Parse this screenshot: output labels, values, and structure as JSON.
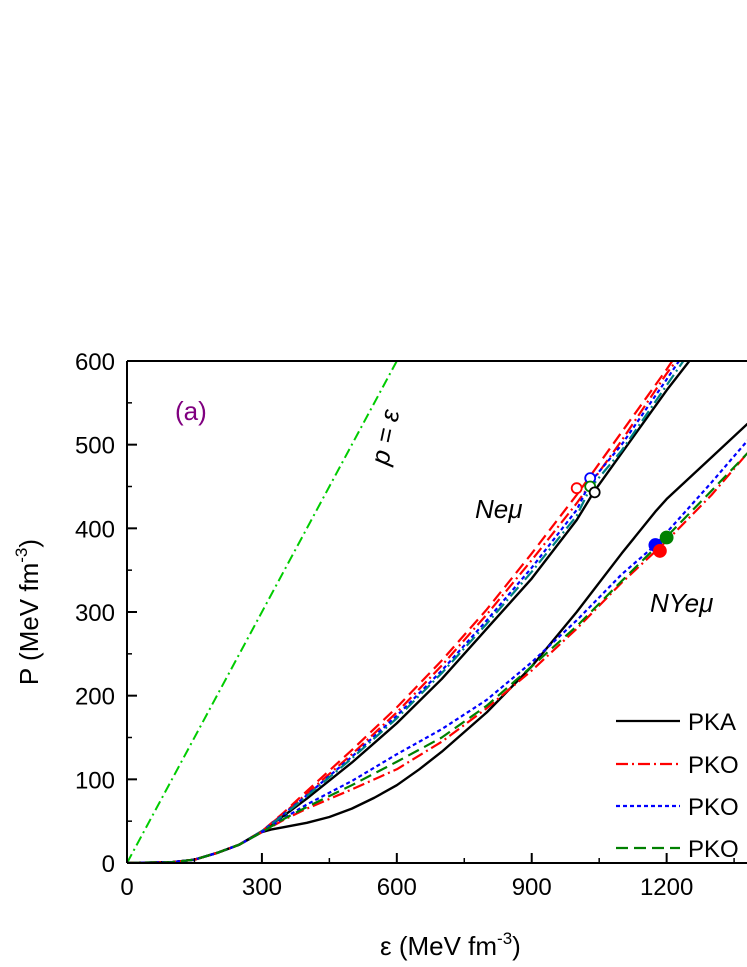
{
  "chart_data": {
    "type": "line",
    "panel_label": "(a)",
    "xlabel_main": "ε (MeV fm",
    "xlabel_sup": "-3",
    "xlabel_end": ")",
    "ylabel_main": "P (MeV fm",
    "ylabel_sup": "-3",
    "ylabel_end": ")",
    "xlim": [
      0,
      1380
    ],
    "ylim": [
      0,
      600
    ],
    "xticks": [
      0,
      300,
      600,
      900,
      1200
    ],
    "yticks": [
      0,
      100,
      200,
      300,
      400,
      500,
      600
    ],
    "xtick_labels": [
      "0",
      "300",
      "600",
      "900",
      "1200"
    ],
    "ytick_labels": [
      "0",
      "100",
      "200",
      "300",
      "400",
      "500",
      "600"
    ],
    "grid": false,
    "legend": [
      "PKA",
      "PKO",
      "PKO",
      "PKO"
    ],
    "annotations": {
      "causality": "p = ε",
      "nucleonic": "Neμ",
      "hyperonic": "NYeμ"
    },
    "colors": {
      "pka": "#000000",
      "pko_red": "#ff0000",
      "pko_blue": "#0000ff",
      "pko_green": "#008000",
      "causal": "#00cc00",
      "teal": "#008080"
    },
    "causality_line": {
      "x": [
        0,
        600
      ],
      "y": [
        0,
        600
      ]
    },
    "series": [
      {
        "group": "Neμ",
        "style": "solid",
        "color": "#000000",
        "x": [
          0,
          100,
          150,
          200,
          250,
          300,
          350,
          400,
          500,
          600,
          700,
          800,
          900,
          1000,
          1040,
          1100,
          1200,
          1265
        ],
        "y": [
          0,
          1,
          4,
          12,
          22,
          38,
          57,
          77,
          120,
          167,
          220,
          280,
          340,
          410,
          445,
          490,
          565,
          610
        ]
      },
      {
        "group": "Neμ",
        "style": "dashdot",
        "color": "#ff0000",
        "x": [
          0,
          100,
          150,
          200,
          250,
          300,
          350,
          400,
          500,
          600,
          700,
          800,
          900,
          1000,
          1100,
          1200,
          1235
        ],
        "y": [
          0,
          1,
          4,
          12,
          22,
          38,
          60,
          83,
          130,
          180,
          236,
          297,
          362,
          430,
          505,
          585,
          610
        ]
      },
      {
        "group": "Neμ",
        "style": "dashed",
        "color": "#ff0000",
        "x": [
          0,
          100,
          150,
          200,
          250,
          300,
          350,
          400,
          500,
          600,
          700,
          800,
          900,
          1000,
          1100,
          1200,
          1225
        ],
        "y": [
          0,
          1,
          4,
          12,
          22,
          38,
          61,
          86,
          135,
          186,
          242,
          303,
          370,
          440,
          515,
          590,
          610
        ]
      },
      {
        "group": "Neμ",
        "style": "dotted",
        "color": "#0000ff",
        "x": [
          0,
          100,
          150,
          200,
          250,
          300,
          350,
          400,
          500,
          600,
          700,
          800,
          900,
          1000,
          1030,
          1100,
          1200,
          1240
        ],
        "y": [
          0,
          1,
          4,
          12,
          22,
          38,
          59,
          81,
          127,
          176,
          230,
          290,
          353,
          422,
          455,
          500,
          578,
          610
        ]
      },
      {
        "group": "Neμ",
        "style": "dashdot",
        "color": "#008080",
        "x": [
          0,
          100,
          150,
          200,
          250,
          300,
          350,
          400,
          500,
          600,
          700,
          800,
          900,
          1000,
          1030,
          1100,
          1200,
          1250
        ],
        "y": [
          0,
          1,
          4,
          12,
          22,
          38,
          58,
          80,
          125,
          173,
          227,
          286,
          348,
          415,
          448,
          493,
          571,
          610
        ]
      },
      {
        "group": "NYeμ",
        "style": "solid",
        "color": "#000000",
        "x": [
          0,
          100,
          150,
          200,
          250,
          300,
          320,
          350,
          400,
          450,
          500,
          550,
          600,
          650,
          700,
          800,
          900,
          1000,
          1100,
          1175,
          1200,
          1300,
          1380
        ],
        "y": [
          0,
          1,
          4,
          12,
          22,
          37,
          40,
          43,
          48,
          55,
          65,
          78,
          93,
          112,
          133,
          180,
          235,
          300,
          370,
          420,
          435,
          485,
          525
        ]
      },
      {
        "group": "NYeμ",
        "style": "dashdot",
        "color": "#ff0000",
        "x": [
          0,
          100,
          150,
          200,
          250,
          300,
          350,
          400,
          500,
          600,
          700,
          800,
          900,
          1000,
          1100,
          1180,
          1200,
          1300,
          1380
        ],
        "y": [
          0,
          1,
          4,
          12,
          22,
          37,
          52,
          65,
          88,
          112,
          145,
          185,
          230,
          280,
          335,
          375,
          385,
          440,
          490
        ]
      },
      {
        "group": "NYeμ",
        "style": "dotted",
        "color": "#0000ff",
        "x": [
          0,
          100,
          150,
          200,
          250,
          300,
          350,
          400,
          500,
          600,
          700,
          800,
          900,
          1000,
          1100,
          1175,
          1200,
          1300,
          1380
        ],
        "y": [
          0,
          1,
          4,
          12,
          22,
          37,
          54,
          70,
          98,
          130,
          160,
          195,
          240,
          290,
          345,
          380,
          395,
          455,
          505
        ]
      },
      {
        "group": "NYeμ",
        "style": "dashed",
        "color": "#008000",
        "x": [
          0,
          100,
          150,
          200,
          250,
          300,
          350,
          400,
          500,
          600,
          700,
          800,
          900,
          1000,
          1100,
          1200,
          1300,
          1380
        ],
        "y": [
          0,
          1,
          4,
          12,
          22,
          37,
          53,
          67,
          93,
          121,
          150,
          188,
          235,
          283,
          337,
          390,
          445,
          490
        ]
      }
    ],
    "markers": [
      {
        "x": 1000,
        "y": 448,
        "color": "#ff0000",
        "filled": false
      },
      {
        "x": 1030,
        "y": 460,
        "color": "#0000ff",
        "filled": false
      },
      {
        "x": 1030,
        "y": 450,
        "color": "#008000",
        "filled": false
      },
      {
        "x": 1040,
        "y": 443,
        "color": "#000000",
        "filled": false
      },
      {
        "x": 1175,
        "y": 380,
        "color": "#0000ff",
        "filled": true
      },
      {
        "x": 1185,
        "y": 373,
        "color": "#ff0000",
        "filled": true
      },
      {
        "x": 1200,
        "y": 389,
        "color": "#008000",
        "filled": true
      }
    ]
  }
}
